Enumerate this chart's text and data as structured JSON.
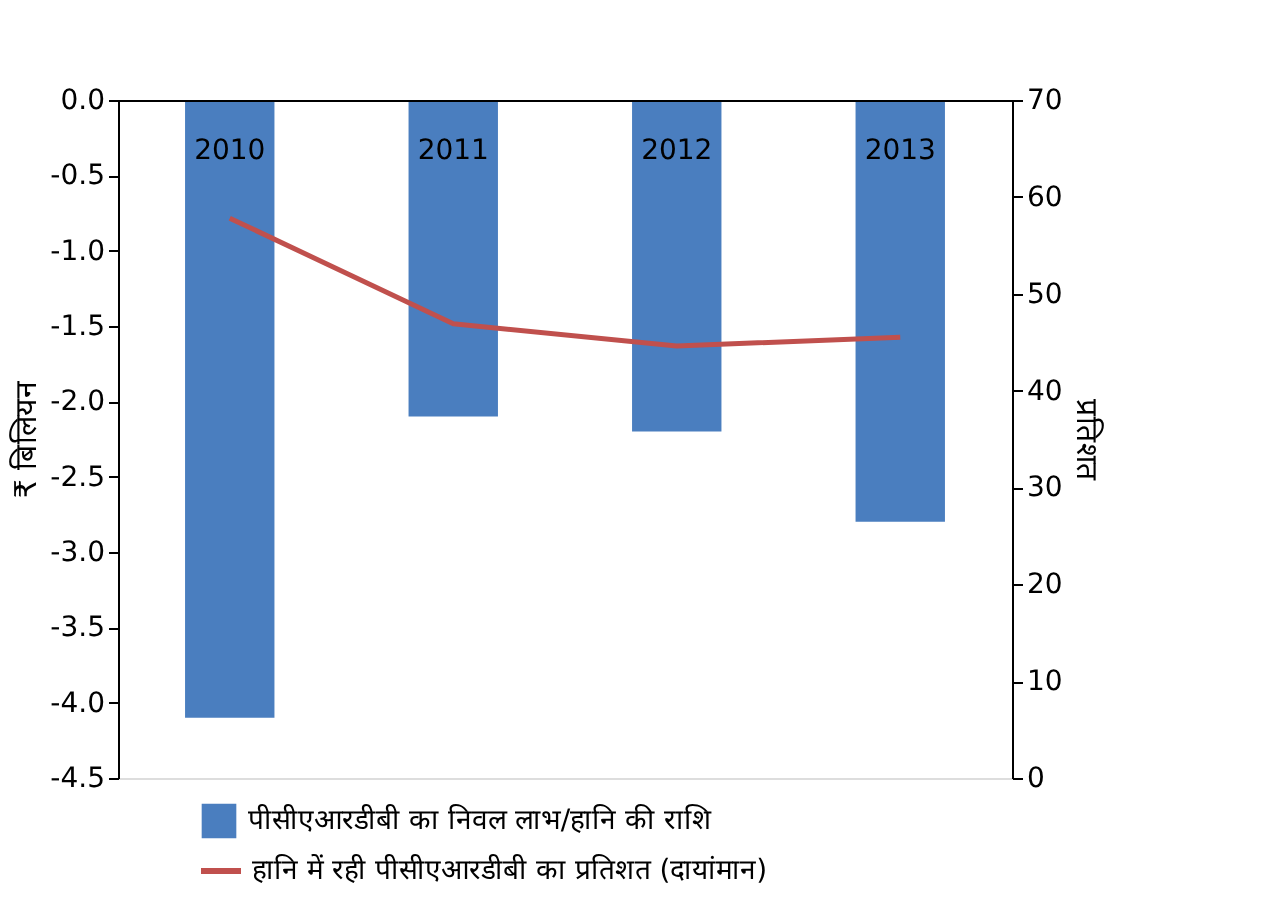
{
  "chart_data": {
    "type": "bar",
    "categories": [
      "2010",
      "2011",
      "2012",
      "2013"
    ],
    "series": [
      {
        "name": "पीसीएआरडीबी का निवल लाभ/हानि की राशि",
        "color": "#4a7ebf",
        "values": [
          -4.1,
          -2.1,
          -2.2,
          -2.8
        ]
      },
      {
        "name": "हानि में रही पीसीएआरडीबी का प्रतिशत (दायांमान)",
        "color": "#c0504d",
        "type": "line",
        "axis": "y2",
        "values": [
          57.8,
          46.9,
          44.6,
          45.5
        ]
      }
    ],
    "ylabel": "₹ बिलियन",
    "y2label": "प्रतिशत",
    "ylim": [
      -4.5,
      0
    ],
    "yticks": [
      {
        "value": 0,
        "label": "0.0"
      },
      -0.5,
      {
        "value": -1,
        "label": "-1.0"
      },
      -1.5,
      {
        "value": -2,
        "label": "-2.0"
      },
      -2.5,
      {
        "value": -3,
        "label": "-3.0"
      },
      -3.5,
      {
        "value": -4,
        "label": "-4.0"
      },
      -4.5
    ],
    "y2lim": [
      0,
      70
    ],
    "y2ticks": [
      0,
      10,
      20,
      30,
      40,
      50,
      60,
      70
    ],
    "grid": false,
    "legend": "bottom",
    "marker": "none",
    "line_style": "solid"
  }
}
